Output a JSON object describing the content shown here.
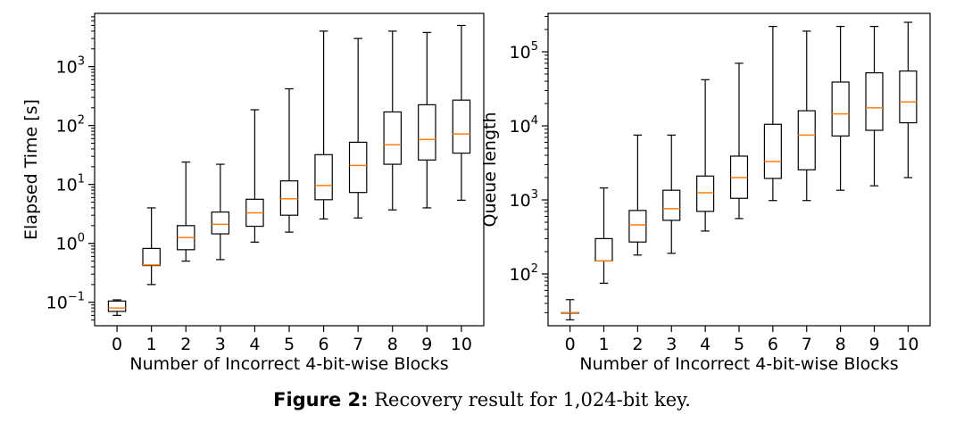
{
  "chart_data": [
    {
      "type": "box",
      "xlabel": "Number of Incorrect 4-bit-wise Blocks",
      "ylabel": "Elapsed Time [s]",
      "yscale": "log",
      "ylim": [
        0.04,
        8000
      ],
      "categories": [
        "0",
        "1",
        "2",
        "3",
        "4",
        "5",
        "6",
        "7",
        "8",
        "9",
        "10"
      ],
      "yticks": [
        {
          "value": 0.1,
          "base": "10",
          "exp": "−1"
        },
        {
          "value": 1,
          "base": "10",
          "exp": "0"
        },
        {
          "value": 10,
          "base": "10",
          "exp": "1"
        },
        {
          "value": 100,
          "base": "10",
          "exp": "2"
        },
        {
          "value": 1000,
          "base": "10",
          "exp": "3"
        }
      ],
      "boxes": [
        {
          "min": 0.06,
          "q1": 0.07,
          "median": 0.08,
          "q3": 0.105,
          "max": 0.11
        },
        {
          "min": 0.2,
          "q1": 0.42,
          "median": 0.43,
          "q3": 0.82,
          "max": 4.0
        },
        {
          "min": 0.5,
          "q1": 0.78,
          "median": 1.25,
          "q3": 2.0,
          "max": 24
        },
        {
          "min": 0.53,
          "q1": 1.45,
          "median": 2.1,
          "q3": 3.4,
          "max": 22
        },
        {
          "min": 1.05,
          "q1": 1.95,
          "median": 3.3,
          "q3": 5.6,
          "max": 185
        },
        {
          "min": 1.55,
          "q1": 3.0,
          "median": 5.7,
          "q3": 11.5,
          "max": 420
        },
        {
          "min": 2.6,
          "q1": 5.5,
          "median": 9.6,
          "q3": 32,
          "max": 4000
        },
        {
          "min": 2.7,
          "q1": 7.3,
          "median": 21,
          "q3": 52,
          "max": 3000
        },
        {
          "min": 3.7,
          "q1": 22,
          "median": 47,
          "q3": 170,
          "max": 4000
        },
        {
          "min": 4.0,
          "q1": 26,
          "median": 58,
          "q3": 225,
          "max": 3800
        },
        {
          "min": 5.4,
          "q1": 34,
          "median": 72,
          "q3": 270,
          "max": 5000
        }
      ]
    },
    {
      "type": "box",
      "xlabel": "Number of Incorrect 4-bit-wise Blocks",
      "ylabel": "Queue length",
      "yscale": "log",
      "ylim": [
        20,
        330000
      ],
      "categories": [
        "0",
        "1",
        "2",
        "3",
        "4",
        "5",
        "6",
        "7",
        "8",
        "9",
        "10"
      ],
      "yticks": [
        {
          "value": 100,
          "base": "10",
          "exp": "2"
        },
        {
          "value": 1000,
          "base": "10",
          "exp": "3"
        },
        {
          "value": 10000,
          "base": "10",
          "exp": "4"
        },
        {
          "value": 100000,
          "base": "10",
          "exp": "5"
        }
      ],
      "boxes": [
        {
          "min": 24,
          "q1": 30,
          "median": 30,
          "q3": 30,
          "max": 45
        },
        {
          "min": 75,
          "q1": 150,
          "median": 150,
          "q3": 300,
          "max": 1450
        },
        {
          "min": 180,
          "q1": 270,
          "median": 460,
          "q3": 720,
          "max": 7500
        },
        {
          "min": 190,
          "q1": 530,
          "median": 760,
          "q3": 1350,
          "max": 7500
        },
        {
          "min": 380,
          "q1": 700,
          "median": 1250,
          "q3": 2100,
          "max": 42000
        },
        {
          "min": 560,
          "q1": 1050,
          "median": 2000,
          "q3": 3900,
          "max": 70000
        },
        {
          "min": 980,
          "q1": 1950,
          "median": 3300,
          "q3": 10500,
          "max": 220000
        },
        {
          "min": 980,
          "q1": 2550,
          "median": 7500,
          "q3": 16000,
          "max": 190000
        },
        {
          "min": 1350,
          "q1": 7300,
          "median": 14500,
          "q3": 39000,
          "max": 220000
        },
        {
          "min": 1550,
          "q1": 8700,
          "median": 17500,
          "q3": 52000,
          "max": 220000
        },
        {
          "min": 2000,
          "q1": 11000,
          "median": 21000,
          "q3": 55000,
          "max": 250000
        }
      ]
    }
  ],
  "caption": {
    "label": "Figure 2:",
    "text": " Recovery result for 1,024-bit key."
  },
  "colors": {
    "box": "#000000",
    "median": "#ff7f0e"
  }
}
